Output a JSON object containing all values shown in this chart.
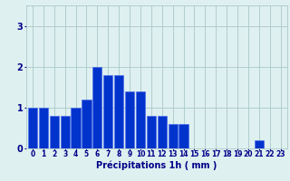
{
  "values": [
    1.0,
    1.0,
    0.8,
    0.8,
    1.0,
    1.2,
    2.0,
    1.8,
    1.8,
    1.4,
    1.4,
    0.8,
    0.8,
    0.6,
    0.6,
    0.0,
    0.0,
    0.0,
    0.0,
    0.0,
    0.0,
    0.2,
    0.0,
    0.0
  ],
  "bar_color": "#0033cc",
  "bar_edge_color": "#4466ee",
  "background_color": "#dff0f0",
  "grid_color": "#aac8c8",
  "xlabel": "Précipitations 1h ( mm )",
  "xlabel_color": "#000088",
  "xlabel_fontsize": 7,
  "tick_color": "#000088",
  "tick_fontsize": 5.5,
  "ytick_fontsize": 7,
  "yticks": [
    0,
    1,
    2,
    3
  ],
  "ylim": [
    0,
    3.5
  ],
  "xlim": [
    -0.6,
    23.6
  ],
  "n_bars": 24
}
